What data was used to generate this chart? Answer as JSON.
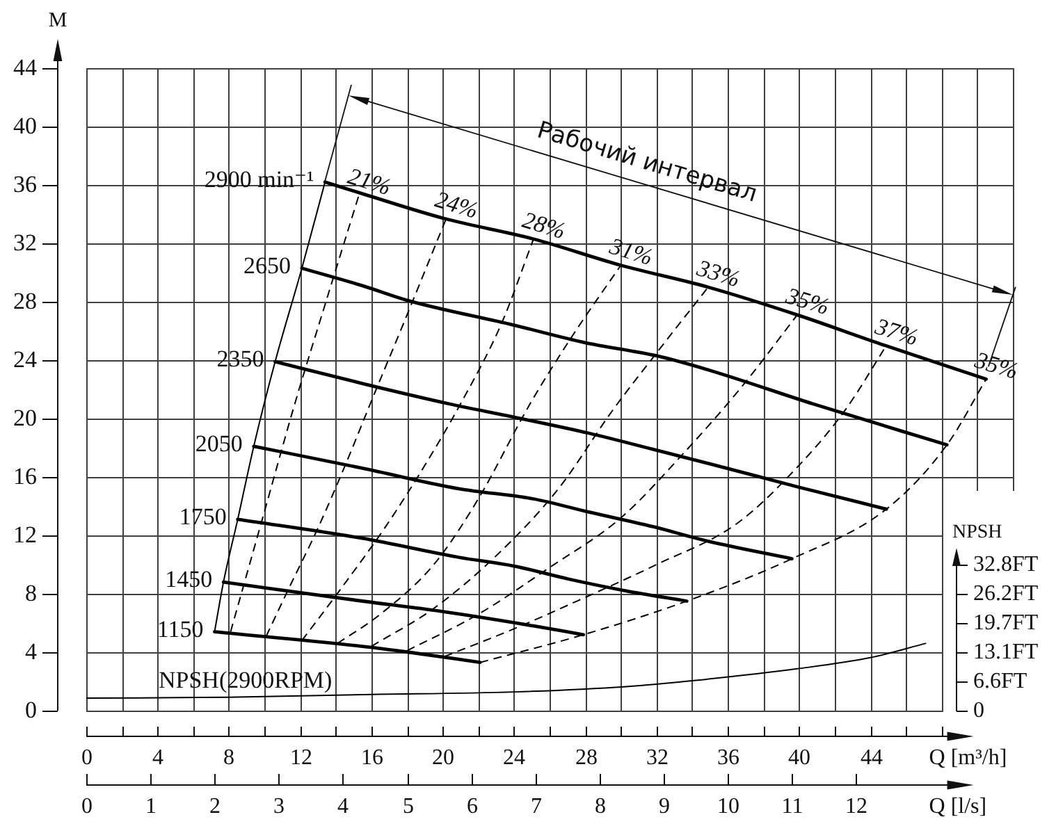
{
  "chart_data": {
    "type": "line",
    "xlabel": "Q [m³/h]",
    "x2label": "Q [l/s]",
    "ylabel": "M",
    "y2label": "NPSH",
    "annotations": [
      "Рабочий интервал"
    ],
    "xlim": [
      0,
      52
    ],
    "xticks": [
      0,
      {
        "value": 2,
        "label": null
      },
      4,
      {
        "value": 6,
        "label": null
      },
      8,
      {
        "value": 10,
        "label": null
      },
      12,
      {
        "value": 14,
        "label": null
      },
      16,
      {
        "value": 18,
        "label": null
      },
      20,
      {
        "value": 22,
        "label": null
      },
      24,
      {
        "value": 26,
        "label": null
      },
      28,
      {
        "value": 30,
        "label": null
      },
      32,
      {
        "value": 34,
        "label": null
      },
      36,
      {
        "value": 38,
        "label": null
      },
      40,
      {
        "value": 42,
        "label": null
      },
      44,
      {
        "value": 46,
        "label": null
      },
      {
        "value": 48,
        "label": null
      }
    ],
    "x2lim": [
      0,
      14.44
    ],
    "x2ticks": [
      0,
      1,
      2,
      3,
      4,
      5,
      6,
      7,
      8,
      9,
      10,
      11,
      12
    ],
    "ylim": [
      0,
      44
    ],
    "yticks": [
      0,
      4,
      8,
      12,
      16,
      20,
      24,
      28,
      32,
      36,
      40,
      44
    ],
    "y2lim": [
      0,
      144.4
    ],
    "y2ticks": [
      0,
      {
        "value": 6.6,
        "label": "6.6FT"
      },
      {
        "value": 13.1,
        "label": "13.1FT"
      },
      {
        "value": 19.7,
        "label": "19.7FT"
      },
      {
        "value": 26.2,
        "label": "26.2FT"
      },
      {
        "value": 32.8,
        "label": "32.8FT"
      }
    ],
    "grid": true,
    "marker": "none",
    "series": [
      {
        "name": "2900 min⁻¹",
        "color": "#000000",
        "line_style": "solid",
        "x": [
          13.4,
          15.5,
          20.1,
          25.1,
          30.0,
          34.9,
          39.9,
          44.6,
          50.5
        ],
        "values": [
          36.2,
          35.4,
          33.7,
          32.3,
          30.5,
          29.0,
          27.1,
          25.1,
          22.7
        ]
      },
      {
        "name": "2650",
        "color": "#000000",
        "line_style": "solid",
        "x": [
          12.1,
          15.5,
          18.0,
          24.0,
          28.0,
          32.0,
          35.0,
          40.8,
          48.3
        ],
        "values": [
          30.3,
          29.1,
          28.1,
          26.4,
          25.2,
          24.3,
          23.3,
          21.0,
          18.2
        ]
      },
      {
        "name": "2350",
        "color": "#000000",
        "line_style": "solid",
        "x": [
          10.6,
          15.5,
          20.4,
          24.0,
          28.2,
          31.8,
          35.0,
          40.0,
          44.9
        ],
        "values": [
          23.9,
          22.4,
          21.0,
          20.1,
          19.0,
          17.9,
          16.9,
          15.3,
          13.8
        ]
      },
      {
        "name": "2050",
        "color": "#000000",
        "line_style": "solid",
        "x": [
          9.4,
          15.5,
          20.9,
          25.1,
          28.2,
          31.8,
          34.9,
          39.6
        ],
        "values": [
          18.1,
          16.6,
          15.2,
          14.5,
          13.6,
          12.6,
          11.6,
          10.4
        ]
      },
      {
        "name": "1750",
        "color": "#000000",
        "line_style": "solid",
        "x": [
          8.5,
          15.5,
          20.9,
          24.0,
          27.1,
          30.3,
          33.7
        ],
        "values": [
          13.1,
          11.8,
          10.5,
          9.9,
          9.0,
          8.2,
          7.5
        ]
      },
      {
        "name": "1450",
        "color": "#000000",
        "line_style": "solid",
        "x": [
          7.7,
          15.5,
          19.9,
          25.1,
          27.9
        ],
        "values": [
          8.8,
          7.5,
          6.8,
          5.8,
          5.2
        ]
      },
      {
        "name": "1150",
        "color": "#000000",
        "line_style": "solid",
        "x": [
          7.2,
          15.5,
          18.1,
          22.1
        ],
        "values": [
          5.4,
          4.4,
          4.0,
          3.3
        ]
      },
      {
        "name": "21%",
        "color": "#000000",
        "line_style": "dashed",
        "x": [
          8.1,
          9.9,
          11.7,
          13.5,
          15.3
        ],
        "values": [
          5.4,
          13.2,
          21.0,
          28.2,
          35.3
        ]
      },
      {
        "name": "24%",
        "color": "#000000",
        "line_style": "dashed",
        "x": [
          10.1,
          11.3,
          13.0,
          14.6,
          16.0,
          17.8,
          20.2
        ],
        "values": [
          5.1,
          8.2,
          12.5,
          17.0,
          21.2,
          26.5,
          33.7
        ]
      },
      {
        "name": "28%",
        "color": "#000000",
        "line_style": "dashed",
        "x": [
          12.1,
          14.2,
          16.8,
          19.2,
          21.0,
          23.3,
          25.1
        ],
        "values": [
          4.8,
          8.2,
          12.6,
          17.2,
          21.0,
          26.5,
          32.3
        ]
      },
      {
        "name": "31%",
        "color": "#000000",
        "line_style": "dashed",
        "x": [
          14.1,
          16.5,
          19.5,
          22.0,
          24.9,
          27.3,
          30.0
        ],
        "values": [
          4.6,
          6.6,
          10.0,
          14.5,
          21.0,
          25.7,
          30.5
        ]
      },
      {
        "name": "33%",
        "color": "#000000",
        "line_style": "dashed",
        "x": [
          16.0,
          19.5,
          23.0,
          26.5,
          29.5,
          32.2,
          34.9
        ],
        "values": [
          4.4,
          7.0,
          10.6,
          15.2,
          20.5,
          24.8,
          29.0
        ]
      },
      {
        "name": "35%",
        "color": "#000000",
        "line_style": "dashed",
        "x": [
          18.0,
          22.0,
          26.0,
          30.0,
          33.5,
          36.8,
          39.9
        ],
        "values": [
          4.1,
          6.6,
          9.8,
          13.2,
          17.6,
          22.2,
          27.1
        ]
      },
      {
        "name": "37%",
        "color": "#000000",
        "line_style": "dashed",
        "x": [
          20.1,
          24.0,
          27.9,
          32.0,
          36.5,
          40.0,
          42.6,
          44.9
        ],
        "values": [
          3.7,
          5.6,
          7.7,
          10.0,
          12.8,
          16.8,
          20.6,
          25.0
        ]
      },
      {
        "name": "35%",
        "color": "#000000",
        "line_style": "dashed",
        "x": [
          22.1,
          27.9,
          33.7,
          39.6,
          44.9,
          48.3,
          50.5
        ],
        "values": [
          3.3,
          5.2,
          7.5,
          10.4,
          13.8,
          18.2,
          22.7
        ]
      },
      {
        "color": "#000000",
        "line_style": "solid",
        "x": [
          7.2,
          7.7,
          8.5,
          9.4,
          10.6,
          12.1,
          13.4
        ],
        "values": [
          5.4,
          8.8,
          13.1,
          18.1,
          23.9,
          30.3,
          36.2
        ]
      },
      {
        "name": "NPSH(2900RPM)",
        "color": "#000000",
        "line_style": "solid",
        "axis": "y2",
        "x": [
          0,
          8.0,
          15.5,
          24.0,
          30.3,
          34.2,
          39.9,
          44.0,
          47.1
        ],
        "values": [
          2.8,
          3.0,
          3.6,
          4.2,
          5.4,
          6.8,
          9.4,
          11.9,
          15.1
        ]
      }
    ]
  }
}
